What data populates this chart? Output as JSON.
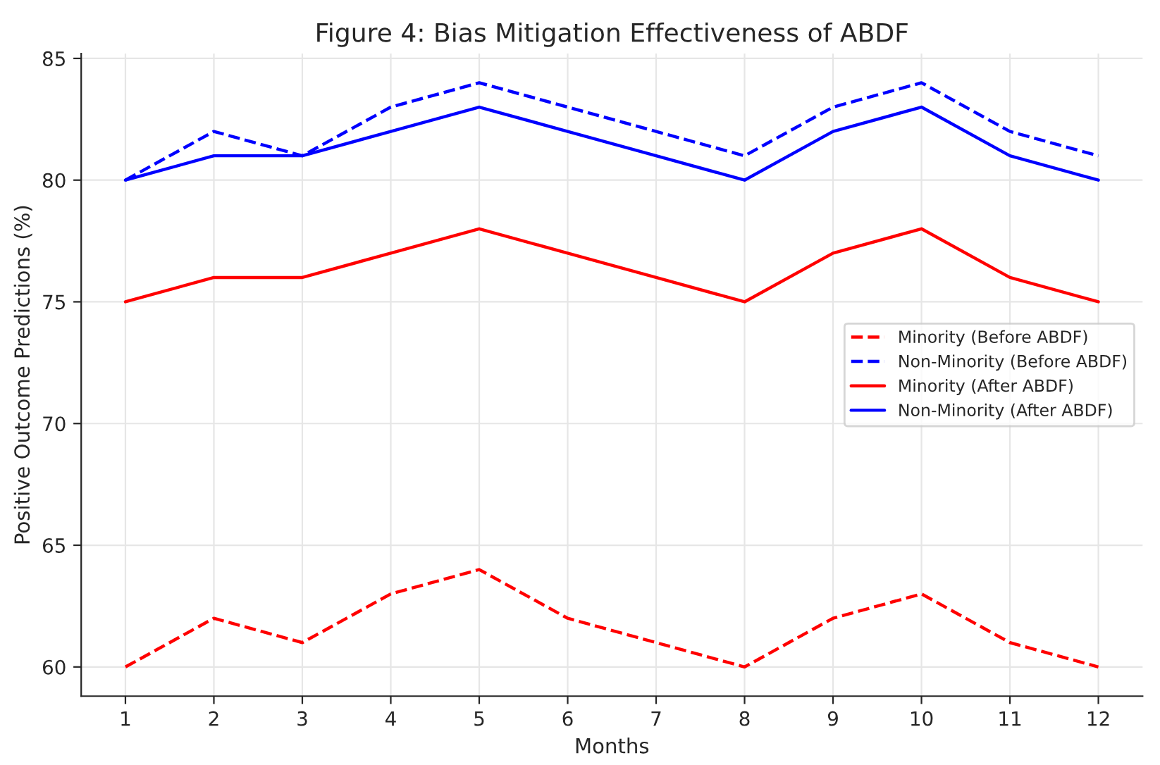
{
  "chart_data": {
    "type": "line",
    "title": "Figure 4: Bias Mitigation Effectiveness of ABDF",
    "xlabel": "Months",
    "ylabel": "Positive Outcome Predictions (%)",
    "x": [
      1,
      2,
      3,
      4,
      5,
      6,
      7,
      8,
      9,
      10,
      11,
      12
    ],
    "series": [
      {
        "name": "Minority (Before ABDF)",
        "color": "#ff0000",
        "line_style": "dashed",
        "values": [
          60,
          62,
          61,
          63,
          64,
          62,
          61,
          60,
          62,
          63,
          61,
          60
        ]
      },
      {
        "name": "Non-Minority (Before ABDF)",
        "color": "#0000ff",
        "line_style": "dashed",
        "values": [
          80,
          82,
          81,
          83,
          84,
          83,
          82,
          81,
          83,
          84,
          82,
          81
        ]
      },
      {
        "name": "Minority (After ABDF)",
        "color": "#ff0000",
        "line_style": "solid",
        "values": [
          75,
          76,
          76,
          77,
          78,
          77,
          76,
          75,
          77,
          78,
          76,
          75
        ]
      },
      {
        "name": "Non-Minority (After ABDF)",
        "color": "#0000ff",
        "line_style": "solid",
        "values": [
          80,
          81,
          81,
          82,
          83,
          82,
          81,
          80,
          82,
          83,
          81,
          80
        ]
      }
    ],
    "xlim": [
      0.5,
      12.5
    ],
    "xticks": [
      1,
      2,
      3,
      4,
      5,
      6,
      7,
      8,
      9,
      10,
      11,
      12
    ],
    "ylim": [
      58.8,
      85.2
    ],
    "yticks": [
      60,
      65,
      70,
      75,
      80,
      85
    ],
    "grid": true,
    "legend": "right",
    "marker": "none"
  }
}
